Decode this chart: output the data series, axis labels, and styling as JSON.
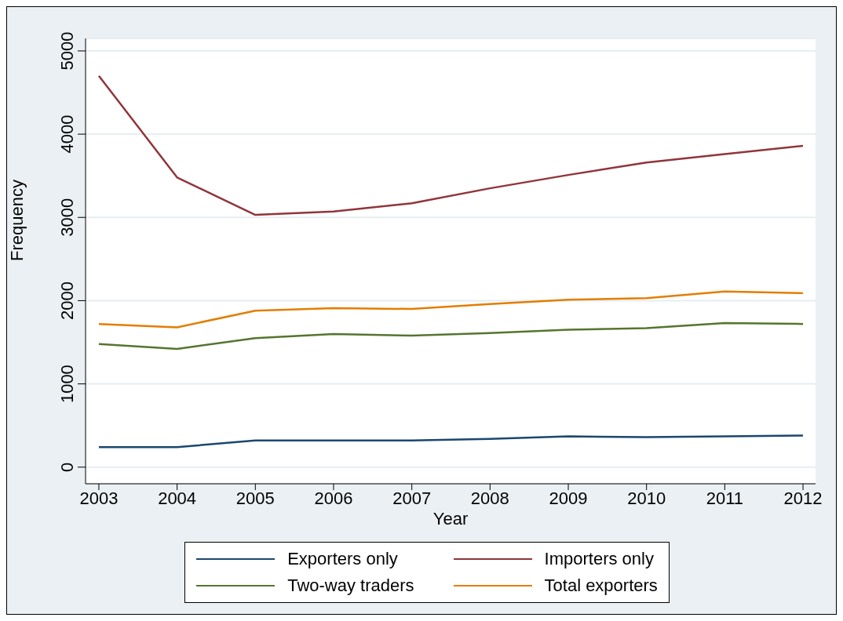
{
  "chart_data": {
    "type": "line",
    "xlabel": "Year",
    "ylabel": "Frequency",
    "x": [
      2003,
      2004,
      2005,
      2006,
      2007,
      2008,
      2009,
      2010,
      2011,
      2012
    ],
    "xlim": [
      2002.83,
      2012.16
    ],
    "xticks": [
      2003,
      2004,
      2005,
      2006,
      2007,
      2008,
      2009,
      2010,
      2011,
      2012
    ],
    "ylim": [
      -200,
      5150
    ],
    "yticks": [
      0,
      1000,
      2000,
      3000,
      4000,
      5000
    ],
    "grid": "y",
    "legend": "bottom",
    "marker": "none",
    "line_style": "solid",
    "series": [
      {
        "name": "Exporters only",
        "color": "#1a476f",
        "values": [
          240,
          240,
          320,
          320,
          320,
          340,
          370,
          360,
          370,
          380
        ]
      },
      {
        "name": "Importers only",
        "color": "#90353b",
        "values": [
          4700,
          3480,
          3030,
          3070,
          3170,
          3350,
          3510,
          3660,
          3760,
          3860
        ]
      },
      {
        "name": "Two-way traders",
        "color": "#55752f",
        "values": [
          1480,
          1420,
          1550,
          1600,
          1580,
          1610,
          1650,
          1670,
          1730,
          1720
        ]
      },
      {
        "name": "Total exporters",
        "color": "#e37e00",
        "values": [
          1720,
          1680,
          1880,
          1910,
          1900,
          1960,
          2010,
          2030,
          2110,
          2090
        ]
      }
    ]
  }
}
